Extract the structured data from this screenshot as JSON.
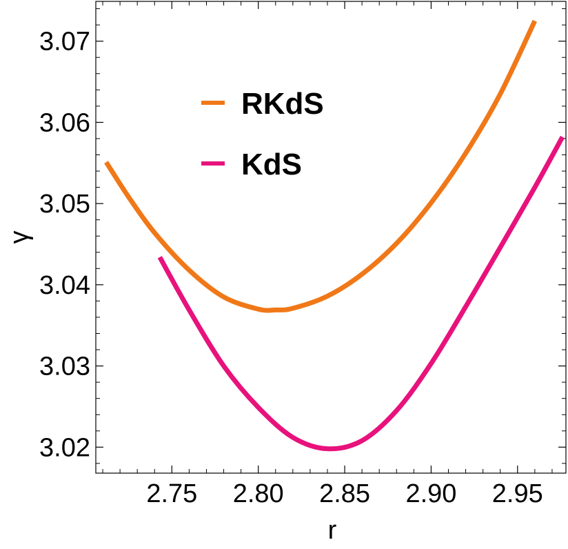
{
  "chart_data": {
    "type": "line",
    "title": "",
    "xlabel": "r",
    "ylabel": "γ",
    "xlim": [
      2.706,
      2.978
    ],
    "ylim": [
      3.0168,
      3.0749
    ],
    "x_ticks": [
      2.75,
      2.8,
      2.85,
      2.9,
      2.95
    ],
    "x_tick_labels": [
      "2.75",
      "2.80",
      "2.85",
      "2.90",
      "2.95"
    ],
    "y_ticks": [
      3.02,
      3.03,
      3.04,
      3.05,
      3.06,
      3.07
    ],
    "y_tick_labels": [
      "3.02",
      "3.03",
      "3.04",
      "3.05",
      "3.06",
      "3.07"
    ],
    "grid": false,
    "legend_position": "upper-left inside",
    "series": [
      {
        "name": "RKdS",
        "color": "#f07818",
        "x": [
          2.712,
          2.725,
          2.74,
          2.76,
          2.78,
          2.8,
          2.81,
          2.82,
          2.84,
          2.86,
          2.88,
          2.9,
          2.92,
          2.94,
          2.96
        ],
        "y": [
          3.0551,
          3.0508,
          3.0464,
          3.0418,
          3.0385,
          3.037,
          3.0369,
          3.0371,
          3.0386,
          3.0413,
          3.0451,
          3.0501,
          3.0562,
          3.0635,
          3.0725
        ]
      },
      {
        "name": "KdS",
        "color": "#e8127c",
        "x": [
          2.743,
          2.76,
          2.78,
          2.8,
          2.82,
          2.84,
          2.86,
          2.88,
          2.9,
          2.92,
          2.94,
          2.96,
          2.976
        ],
        "y": [
          3.0434,
          3.0369,
          3.03,
          3.0249,
          3.0212,
          3.0198,
          3.0208,
          3.0245,
          3.0303,
          3.0373,
          3.0446,
          3.052,
          3.0582
        ]
      }
    ]
  }
}
